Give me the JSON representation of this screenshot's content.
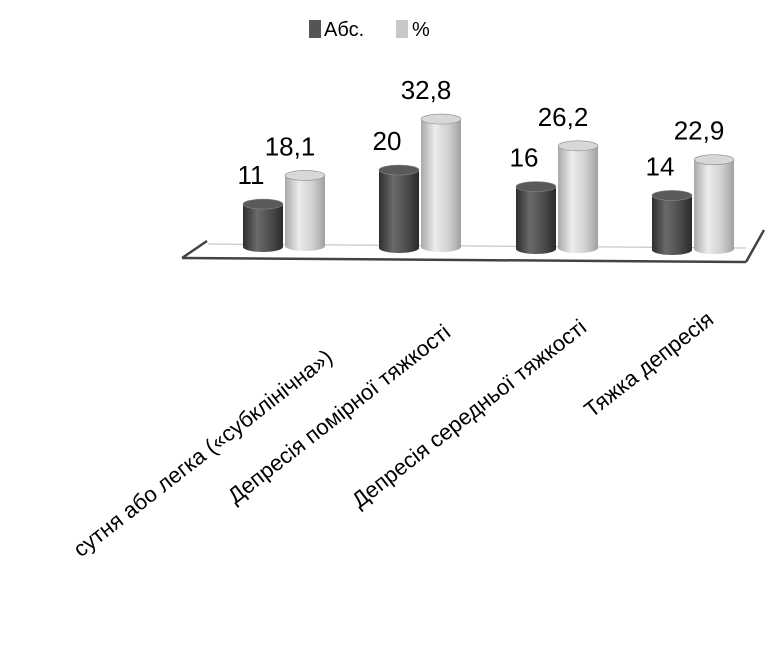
{
  "chart_data": {
    "type": "bar",
    "style": "3d-cylinder",
    "categories": [
      "Відсутня або легка («субклінічна»)",
      "Депресія помірної тяжкості",
      "Депресія середньої тяжкості",
      "Тяжка депресія"
    ],
    "category_labels_visible": [
      "сутня або легка («субклінічна»)",
      "Депресія помірної тяжкості",
      "Депресія середньої тяжкості",
      "Тяжка депресія"
    ],
    "series": [
      {
        "name": "Абс.",
        "values": [
          11,
          20,
          16,
          14
        ],
        "labels": [
          "11",
          "20",
          "16",
          "14"
        ]
      },
      {
        "name": "%",
        "values": [
          18.1,
          32.8,
          26.2,
          22.9
        ],
        "labels": [
          "18,1",
          "32,8",
          "26,2",
          "22,9"
        ]
      }
    ],
    "colors": {
      "abs": "#555555",
      "pct": "#c8c8c8",
      "floor": "#444444"
    },
    "legend_position": "top",
    "grid": false,
    "ylim": [
      0,
      35
    ]
  }
}
